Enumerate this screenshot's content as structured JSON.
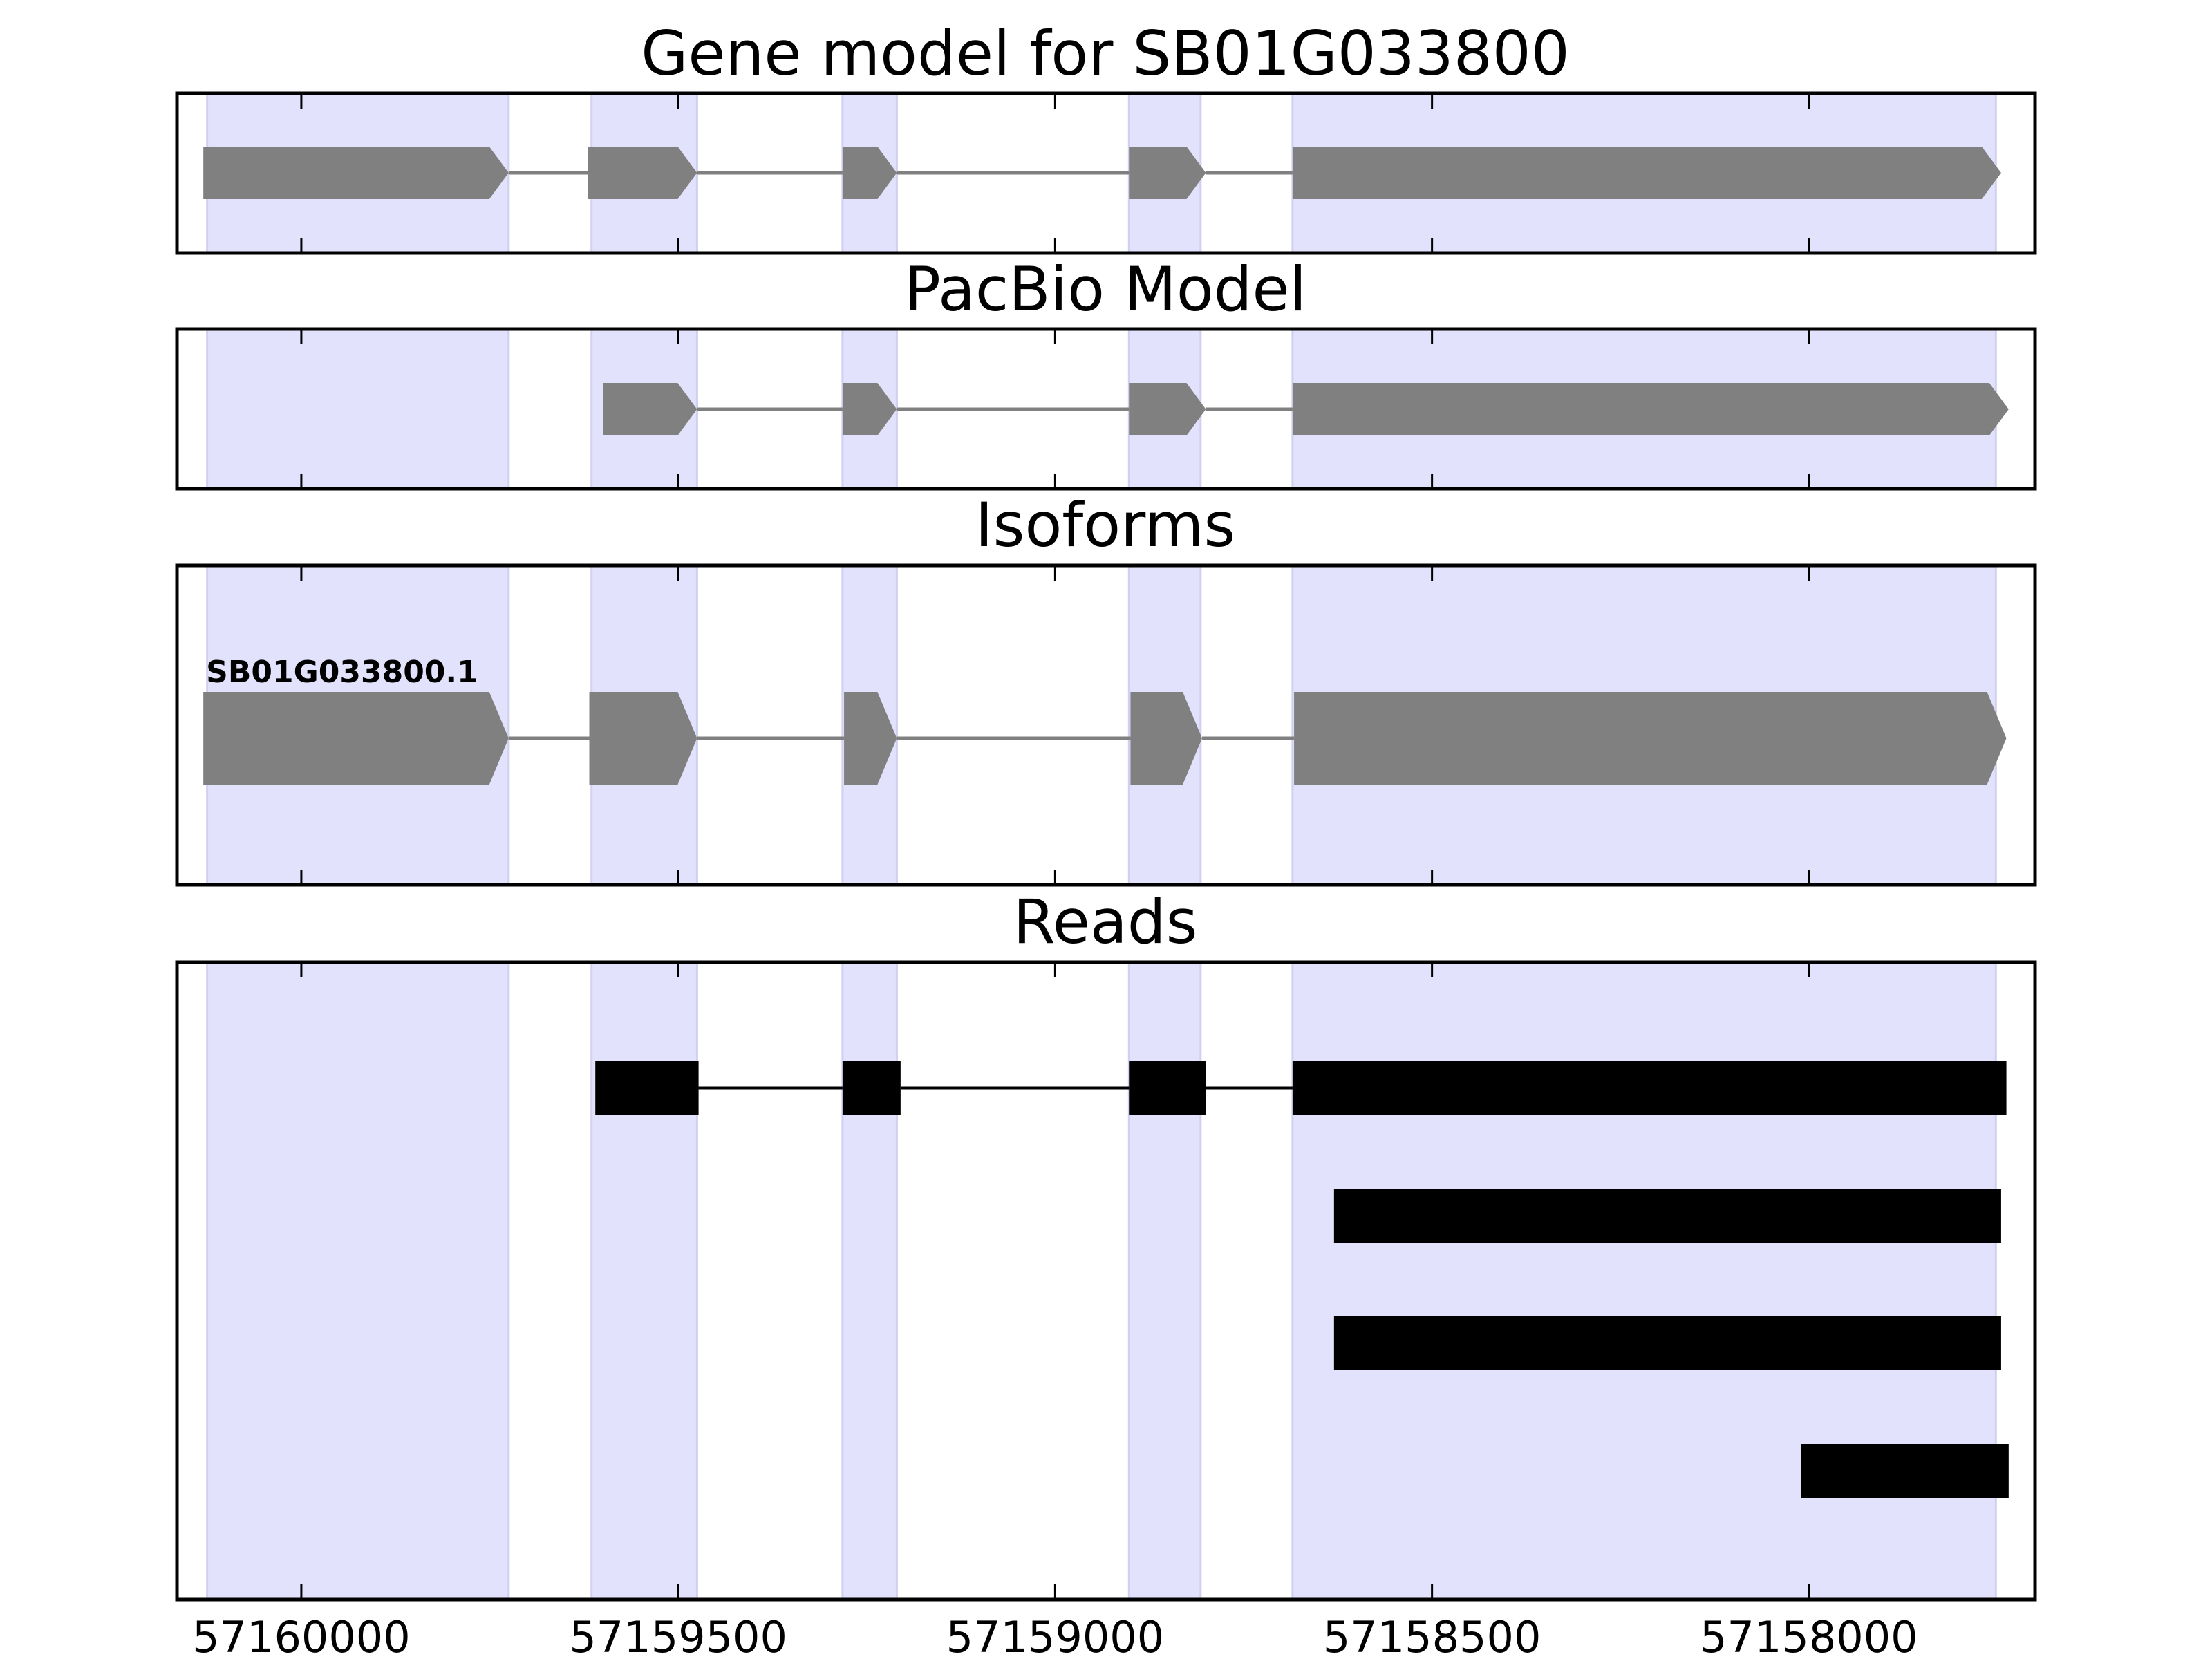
{
  "chart_data": {
    "type": "gene-track",
    "x_axis": {
      "reversed": true,
      "xlim": [
        57160165,
        57157700
      ],
      "ticks": [
        57160000,
        57159500,
        57159000,
        57158500,
        57158000
      ],
      "tick_labels": [
        "57160000",
        "57159500",
        "57159000",
        "57158500",
        "57158000"
      ]
    },
    "exon_highlights": [
      [
        57160125,
        57159725
      ],
      [
        57159615,
        57159475
      ],
      [
        57159282,
        57159210
      ],
      [
        57158902,
        57158807
      ],
      [
        57158685,
        57157752
      ]
    ],
    "colors": {
      "highlight": "#e2e2fd",
      "feature": "#808080",
      "read": "#000000",
      "intron_feature": "#808080",
      "intron_read": "#000000"
    },
    "panels": [
      {
        "title": "Gene model for SB01G033800",
        "features": [
          {
            "label": "",
            "exons": [
              [
                57160130,
                57159725
              ],
              [
                57159620,
                57159475
              ],
              [
                57159282,
                57159210
              ],
              [
                57158902,
                57158800
              ],
              [
                57158685,
                57157745
              ]
            ]
          }
        ]
      },
      {
        "title": "PacBio Model",
        "features": [
          {
            "label": "",
            "exons": [
              [
                57159600,
                57159475
              ],
              [
                57159282,
                57159210
              ],
              [
                57158902,
                57158800
              ],
              [
                57158685,
                57157735
              ]
            ]
          }
        ]
      },
      {
        "title": "Isoforms",
        "features": [
          {
            "label": "SB01G033800.1",
            "exons": [
              [
                57160130,
                57159725
              ],
              [
                57159618,
                57159475
              ],
              [
                57159280,
                57159210
              ],
              [
                57158900,
                57158805
              ],
              [
                57158683,
                57157738
              ]
            ]
          }
        ]
      },
      {
        "title": "Reads",
        "reads": [
          {
            "exons": [
              [
                57159610,
                57159473
              ],
              [
                57159282,
                57159205
              ],
              [
                57158902,
                57158800
              ],
              [
                57158685,
                57157738
              ]
            ]
          },
          {
            "exons": [
              [
                57158630,
                57157745
              ]
            ]
          },
          {
            "exons": [
              [
                57158630,
                57157745
              ]
            ]
          },
          {
            "exons": [
              [
                57158010,
                57157735
              ]
            ]
          }
        ]
      }
    ]
  }
}
